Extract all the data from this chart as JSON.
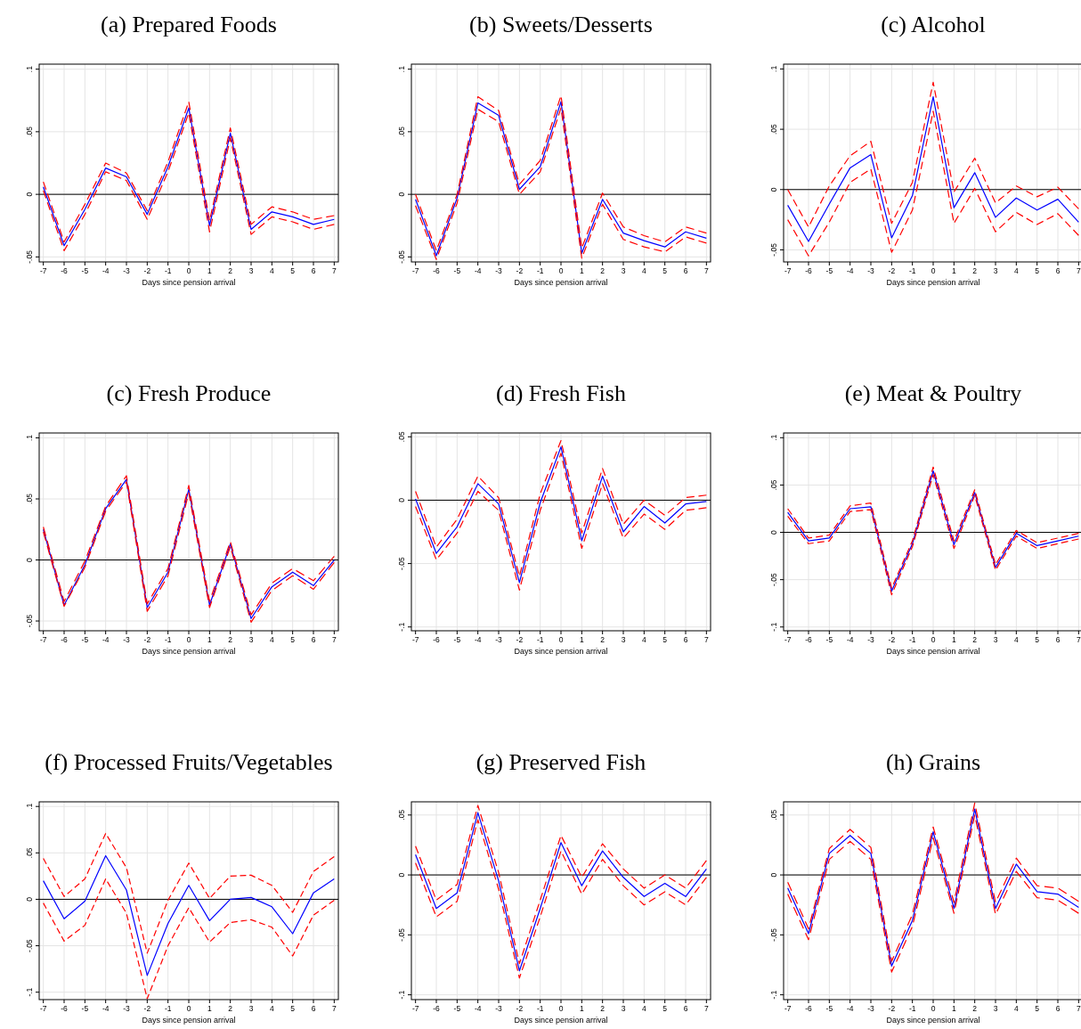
{
  "chart_data": [
    {
      "type": "line",
      "title": "(a) Prepared Foods",
      "xlabel": "Days since pension arrival",
      "x": [
        -7,
        -6,
        -5,
        -4,
        -3,
        -2,
        -1,
        0,
        1,
        2,
        3,
        4,
        5,
        6,
        7
      ],
      "xlim": [
        -7.2,
        7.2
      ],
      "xticks": [
        -7,
        -6,
        -5,
        -4,
        -3,
        -2,
        -1,
        0,
        1,
        2,
        3,
        4,
        5,
        6,
        7
      ],
      "ylim": [
        -0.054,
        0.104
      ],
      "yticks": [
        {
          "value": -0.05,
          "label": "-.05"
        },
        {
          "value": 0,
          "label": "0"
        },
        {
          "value": 0.05,
          "label": ".05"
        },
        {
          "value": 0.1,
          "label": ".1"
        }
      ],
      "grid": true,
      "ref_lines": [
        {
          "axis": "y",
          "value": 0,
          "color": "#000000"
        }
      ],
      "series": [
        {
          "color": "#0000ff",
          "line_style": "solid",
          "values": [
            0.006,
            -0.041,
            -0.012,
            0.021,
            0.014,
            -0.016,
            0.022,
            0.069,
            -0.025,
            0.049,
            -0.028,
            -0.014,
            -0.018,
            -0.024,
            -0.02
          ]
        },
        {
          "color": "#ff0000",
          "line_style": "dashed",
          "values": [
            0.01,
            -0.038,
            -0.008,
            0.025,
            0.017,
            -0.013,
            0.026,
            0.074,
            -0.021,
            0.053,
            -0.024,
            -0.01,
            -0.014,
            -0.02,
            -0.017
          ]
        },
        {
          "color": "#ff0000",
          "line_style": "dashed",
          "values": [
            0.003,
            -0.045,
            -0.016,
            0.018,
            0.011,
            -0.02,
            0.018,
            0.065,
            -0.03,
            0.045,
            -0.032,
            -0.018,
            -0.022,
            -0.028,
            -0.024
          ]
        }
      ]
    },
    {
      "type": "line",
      "title": "(b) Sweets/Desserts",
      "xlabel": "Days since pension arrival",
      "x": [
        -7,
        -6,
        -5,
        -4,
        -3,
        -2,
        -1,
        0,
        1,
        2,
        3,
        4,
        5,
        6,
        7
      ],
      "xlim": [
        -7.2,
        7.2
      ],
      "xticks": [
        -7,
        -6,
        -5,
        -4,
        -3,
        -2,
        -1,
        0,
        1,
        2,
        3,
        4,
        5,
        6,
        7
      ],
      "ylim": [
        -0.054,
        0.104
      ],
      "yticks": [
        {
          "value": -0.05,
          "label": "-.05"
        },
        {
          "value": 0,
          "label": "0"
        },
        {
          "value": 0.05,
          "label": ".05"
        },
        {
          "value": 0.1,
          "label": ".1"
        }
      ],
      "grid": true,
      "ref_lines": [
        {
          "axis": "y",
          "value": 0,
          "color": "#000000"
        }
      ],
      "series": [
        {
          "color": "#0000ff",
          "line_style": "solid",
          "values": [
            -0.004,
            -0.049,
            -0.003,
            0.073,
            0.063,
            0.004,
            0.022,
            0.074,
            -0.047,
            -0.004,
            -0.031,
            -0.037,
            -0.042,
            -0.03,
            -0.035
          ]
        },
        {
          "color": "#ff0000",
          "line_style": "dashed",
          "values": [
            0.0,
            -0.045,
            0.0,
            0.078,
            0.067,
            0.008,
            0.027,
            0.079,
            -0.043,
            0.001,
            -0.026,
            -0.033,
            -0.038,
            -0.026,
            -0.031
          ]
        },
        {
          "color": "#ff0000",
          "line_style": "dashed",
          "values": [
            -0.009,
            -0.052,
            -0.007,
            0.068,
            0.058,
            0.0,
            0.018,
            0.069,
            -0.051,
            -0.008,
            -0.036,
            -0.042,
            -0.046,
            -0.034,
            -0.039
          ]
        }
      ]
    },
    {
      "type": "line",
      "title": "(c) Alcohol",
      "xlabel": "Days since pension arrival",
      "x": [
        -7,
        -6,
        -5,
        -4,
        -3,
        -2,
        -1,
        0,
        1,
        2,
        3,
        4,
        5,
        6,
        7
      ],
      "xlim": [
        -7.2,
        7.2
      ],
      "xticks": [
        -7,
        -6,
        -5,
        -4,
        -3,
        -2,
        -1,
        0,
        1,
        2,
        3,
        4,
        5,
        6,
        7
      ],
      "ylim": [
        -0.06,
        0.104
      ],
      "yticks": [
        {
          "value": -0.05,
          "label": "-.05"
        },
        {
          "value": 0,
          "label": "0"
        },
        {
          "value": 0.05,
          "label": ".05"
        },
        {
          "value": 0.1,
          "label": ".1"
        }
      ],
      "grid": true,
      "ref_lines": [
        {
          "axis": "y",
          "value": 0,
          "color": "#000000"
        }
      ],
      "series": [
        {
          "color": "#0000ff",
          "line_style": "solid",
          "values": [
            -0.013,
            -0.043,
            -0.012,
            0.018,
            0.029,
            -0.04,
            -0.005,
            0.077,
            -0.015,
            0.014,
            -0.023,
            -0.007,
            -0.017,
            -0.008,
            -0.027
          ]
        },
        {
          "color": "#ff0000",
          "line_style": "dashed",
          "values": [
            0.0,
            -0.031,
            0.003,
            0.028,
            0.04,
            -0.028,
            0.006,
            0.089,
            -0.002,
            0.026,
            -0.011,
            0.003,
            -0.006,
            0.002,
            -0.016
          ]
        },
        {
          "color": "#ff0000",
          "line_style": "dashed",
          "values": [
            -0.025,
            -0.055,
            -0.027,
            0.006,
            0.017,
            -0.052,
            -0.017,
            0.065,
            -0.028,
            0.001,
            -0.035,
            -0.019,
            -0.029,
            -0.02,
            -0.038
          ]
        }
      ]
    },
    {
      "type": "line",
      "title": "(c) Fresh Produce",
      "xlabel": "Days since pension arrival",
      "x": [
        -7,
        -6,
        -5,
        -4,
        -3,
        -2,
        -1,
        0,
        1,
        2,
        3,
        4,
        5,
        6,
        7
      ],
      "xlim": [
        -7.2,
        7.2
      ],
      "xticks": [
        -7,
        -6,
        -5,
        -4,
        -3,
        -2,
        -1,
        0,
        1,
        2,
        3,
        4,
        5,
        6,
        7
      ],
      "ylim": [
        -0.058,
        0.104
      ],
      "yticks": [
        {
          "value": -0.05,
          "label": "-.05"
        },
        {
          "value": 0,
          "label": "0"
        },
        {
          "value": 0.05,
          "label": ".05"
        },
        {
          "value": 0.1,
          "label": ".1"
        }
      ],
      "grid": true,
      "ref_lines": [
        {
          "axis": "y",
          "value": 0,
          "color": "#000000"
        }
      ],
      "series": [
        {
          "color": "#0000ff",
          "line_style": "solid",
          "values": [
            0.025,
            -0.037,
            -0.004,
            0.042,
            0.066,
            -0.039,
            -0.01,
            0.058,
            -0.037,
            0.013,
            -0.048,
            -0.022,
            -0.01,
            -0.021,
            0.0
          ]
        },
        {
          "color": "#ff0000",
          "line_style": "dashed",
          "values": [
            0.027,
            -0.034,
            -0.001,
            0.044,
            0.069,
            -0.036,
            -0.007,
            0.061,
            -0.034,
            0.015,
            -0.045,
            -0.019,
            -0.007,
            -0.017,
            0.003
          ]
        },
        {
          "color": "#ff0000",
          "line_style": "dashed",
          "values": [
            0.023,
            -0.038,
            -0.006,
            0.04,
            0.064,
            -0.042,
            -0.013,
            0.055,
            -0.039,
            0.011,
            -0.051,
            -0.025,
            -0.013,
            -0.024,
            -0.002
          ]
        }
      ]
    },
    {
      "type": "line",
      "title": "(d) Fresh Fish",
      "xlabel": "Days since pension arrival",
      "x": [
        -7,
        -6,
        -5,
        -4,
        -3,
        -2,
        -1,
        0,
        1,
        2,
        3,
        4,
        5,
        6,
        7
      ],
      "xlim": [
        -7.2,
        7.2
      ],
      "xticks": [
        -7,
        -6,
        -5,
        -4,
        -3,
        -2,
        -1,
        0,
        1,
        2,
        3,
        4,
        5,
        6,
        7
      ],
      "ylim": [
        -0.103,
        0.053
      ],
      "yticks": [
        {
          "value": -0.1,
          "label": "-.1"
        },
        {
          "value": -0.05,
          "label": "-.05"
        },
        {
          "value": 0,
          "label": "0"
        },
        {
          "value": 0.05,
          "label": ".05"
        }
      ],
      "grid": true,
      "ref_lines": [
        {
          "axis": "y",
          "value": 0,
          "color": "#000000"
        }
      ],
      "series": [
        {
          "color": "#0000ff",
          "line_style": "solid",
          "values": [
            0.001,
            -0.042,
            -0.021,
            0.013,
            -0.003,
            -0.065,
            -0.002,
            0.042,
            -0.032,
            0.019,
            -0.025,
            -0.005,
            -0.018,
            -0.003,
            -0.001
          ]
        },
        {
          "color": "#ff0000",
          "line_style": "dashed",
          "values": [
            0.007,
            -0.037,
            -0.015,
            0.019,
            0.002,
            -0.06,
            0.005,
            0.047,
            -0.026,
            0.025,
            -0.019,
            0.0,
            -0.012,
            0.002,
            0.004
          ]
        },
        {
          "color": "#ff0000",
          "line_style": "dashed",
          "values": [
            -0.005,
            -0.047,
            -0.026,
            0.007,
            -0.008,
            -0.071,
            -0.008,
            0.037,
            -0.038,
            0.013,
            -0.03,
            -0.011,
            -0.023,
            -0.008,
            -0.006
          ]
        }
      ]
    },
    {
      "type": "line",
      "title": "(e) Meat & Poultry",
      "xlabel": "Days since pension arrival",
      "x": [
        -7,
        -6,
        -5,
        -4,
        -3,
        -2,
        -1,
        0,
        1,
        2,
        3,
        4,
        5,
        6,
        7
      ],
      "xlim": [
        -7.2,
        7.2
      ],
      "xticks": [
        -7,
        -6,
        -5,
        -4,
        -3,
        -2,
        -1,
        0,
        1,
        2,
        3,
        4,
        5,
        6,
        7
      ],
      "ylim": [
        -0.104,
        0.105
      ],
      "yticks": [
        {
          "value": -0.1,
          "label": "-.1"
        },
        {
          "value": -0.05,
          "label": "-.05"
        },
        {
          "value": 0,
          "label": "0"
        },
        {
          "value": 0.05,
          "label": ".05"
        },
        {
          "value": 0.1,
          "label": ".1"
        }
      ],
      "grid": true,
      "ref_lines": [
        {
          "axis": "y",
          "value": 0,
          "color": "#000000"
        }
      ],
      "series": [
        {
          "color": "#0000ff",
          "line_style": "solid",
          "values": [
            0.021,
            -0.009,
            -0.006,
            0.025,
            0.027,
            -0.062,
            -0.012,
            0.065,
            -0.013,
            0.042,
            -0.037,
            -0.001,
            -0.014,
            -0.009,
            -0.004
          ]
        },
        {
          "color": "#ff0000",
          "line_style": "dashed",
          "values": [
            0.025,
            -0.006,
            -0.003,
            0.028,
            0.031,
            -0.059,
            -0.009,
            0.069,
            -0.009,
            0.045,
            -0.034,
            0.002,
            -0.011,
            -0.006,
            -0.001
          ]
        },
        {
          "color": "#ff0000",
          "line_style": "dashed",
          "values": [
            0.017,
            -0.012,
            -0.009,
            0.022,
            0.024,
            -0.066,
            -0.015,
            0.061,
            -0.017,
            0.039,
            -0.04,
            -0.004,
            -0.017,
            -0.012,
            -0.007
          ]
        }
      ]
    },
    {
      "type": "line",
      "title": "(f) Processed Fruits/Vegetables",
      "xlabel": "Days since pension arrival",
      "x": [
        -7,
        -6,
        -5,
        -4,
        -3,
        -2,
        -1,
        0,
        1,
        2,
        3,
        4,
        5,
        6,
        7
      ],
      "xlim": [
        -7.2,
        7.2
      ],
      "xticks": [
        -7,
        -6,
        -5,
        -4,
        -3,
        -2,
        -1,
        0,
        1,
        2,
        3,
        4,
        5,
        6,
        7
      ],
      "ylim": [
        -0.108,
        0.105
      ],
      "yticks": [
        {
          "value": -0.1,
          "label": "-.1"
        },
        {
          "value": -0.05,
          "label": "-.05"
        },
        {
          "value": 0,
          "label": "0"
        },
        {
          "value": 0.05,
          "label": ".05"
        },
        {
          "value": 0.1,
          "label": ".1"
        }
      ],
      "grid": true,
      "ref_lines": [
        {
          "axis": "y",
          "value": 0,
          "color": "#000000"
        }
      ],
      "series": [
        {
          "color": "#0000ff",
          "line_style": "solid",
          "values": [
            0.02,
            -0.021,
            -0.002,
            0.047,
            0.01,
            -0.082,
            -0.026,
            0.015,
            -0.023,
            0.0,
            0.002,
            -0.008,
            -0.037,
            0.007,
            0.022
          ]
        },
        {
          "color": "#ff0000",
          "line_style": "dashed",
          "values": [
            0.044,
            0.003,
            0.022,
            0.071,
            0.034,
            -0.058,
            -0.001,
            0.039,
            0.001,
            0.025,
            0.026,
            0.015,
            -0.014,
            0.03,
            0.046
          ]
        },
        {
          "color": "#ff0000",
          "line_style": "dashed",
          "values": [
            -0.004,
            -0.045,
            -0.028,
            0.022,
            -0.015,
            -0.107,
            -0.05,
            -0.009,
            -0.046,
            -0.025,
            -0.022,
            -0.03,
            -0.061,
            -0.017,
            -0.001
          ]
        }
      ]
    },
    {
      "type": "line",
      "title": "(g) Preserved Fish",
      "xlabel": "Days since pension arrival",
      "x": [
        -7,
        -6,
        -5,
        -4,
        -3,
        -2,
        -1,
        0,
        1,
        2,
        3,
        4,
        5,
        6,
        7
      ],
      "xlim": [
        -7.2,
        7.2
      ],
      "xticks": [
        -7,
        -6,
        -5,
        -4,
        -3,
        -2,
        -1,
        0,
        1,
        2,
        3,
        4,
        5,
        6,
        7
      ],
      "ylim": [
        -0.104,
        0.061
      ],
      "yticks": [
        {
          "value": -0.1,
          "label": "-.1"
        },
        {
          "value": -0.05,
          "label": "-.05"
        },
        {
          "value": 0,
          "label": "0"
        },
        {
          "value": 0.05,
          "label": ".05"
        }
      ],
      "grid": true,
      "ref_lines": [
        {
          "axis": "y",
          "value": 0,
          "color": "#000000"
        }
      ],
      "series": [
        {
          "color": "#0000ff",
          "line_style": "solid",
          "values": [
            0.017,
            -0.028,
            -0.015,
            0.052,
            -0.005,
            -0.08,
            -0.028,
            0.027,
            -0.009,
            0.02,
            -0.002,
            -0.018,
            -0.007,
            -0.018,
            0.005
          ]
        },
        {
          "color": "#ff0000",
          "line_style": "dashed",
          "values": [
            0.024,
            -0.021,
            -0.008,
            0.058,
            0.002,
            -0.074,
            -0.021,
            0.033,
            -0.002,
            0.026,
            0.005,
            -0.011,
            0.0,
            -0.011,
            0.012
          ]
        },
        {
          "color": "#ff0000",
          "line_style": "dashed",
          "values": [
            0.01,
            -0.035,
            -0.022,
            0.046,
            -0.012,
            -0.086,
            -0.035,
            0.02,
            -0.016,
            0.013,
            -0.009,
            -0.025,
            -0.014,
            -0.025,
            -0.002
          ]
        }
      ]
    },
    {
      "type": "line",
      "title": "(h) Grains",
      "xlabel": "Days since pension arrival",
      "x": [
        -7,
        -6,
        -5,
        -4,
        -3,
        -2,
        -1,
        0,
        1,
        2,
        3,
        4,
        5,
        6,
        7
      ],
      "xlim": [
        -7.2,
        7.2
      ],
      "xticks": [
        -7,
        -6,
        -5,
        -4,
        -3,
        -2,
        -1,
        0,
        1,
        2,
        3,
        4,
        5,
        6,
        7
      ],
      "ylim": [
        -0.104,
        0.061
      ],
      "yticks": [
        {
          "value": -0.1,
          "label": "-.1"
        },
        {
          "value": -0.05,
          "label": "-.05"
        },
        {
          "value": 0,
          "label": "0"
        },
        {
          "value": 0.05,
          "label": ".05"
        }
      ],
      "grid": true,
      "ref_lines": [
        {
          "axis": "y",
          "value": 0,
          "color": "#000000"
        }
      ],
      "series": [
        {
          "color": "#0000ff",
          "line_style": "solid",
          "values": [
            -0.011,
            -0.049,
            0.018,
            0.033,
            0.018,
            -0.076,
            -0.038,
            0.036,
            -0.028,
            0.055,
            -0.028,
            0.009,
            -0.014,
            -0.016,
            -0.027
          ]
        },
        {
          "color": "#ff0000",
          "line_style": "dashed",
          "values": [
            -0.006,
            -0.045,
            0.022,
            0.038,
            0.023,
            -0.072,
            -0.033,
            0.04,
            -0.023,
            0.06,
            -0.023,
            0.014,
            -0.009,
            -0.011,
            -0.022
          ]
        },
        {
          "color": "#ff0000",
          "line_style": "dashed",
          "values": [
            -0.016,
            -0.054,
            0.013,
            0.028,
            0.013,
            -0.081,
            -0.043,
            0.031,
            -0.032,
            0.05,
            -0.033,
            0.003,
            -0.019,
            -0.021,
            -0.032
          ]
        }
      ]
    }
  ]
}
